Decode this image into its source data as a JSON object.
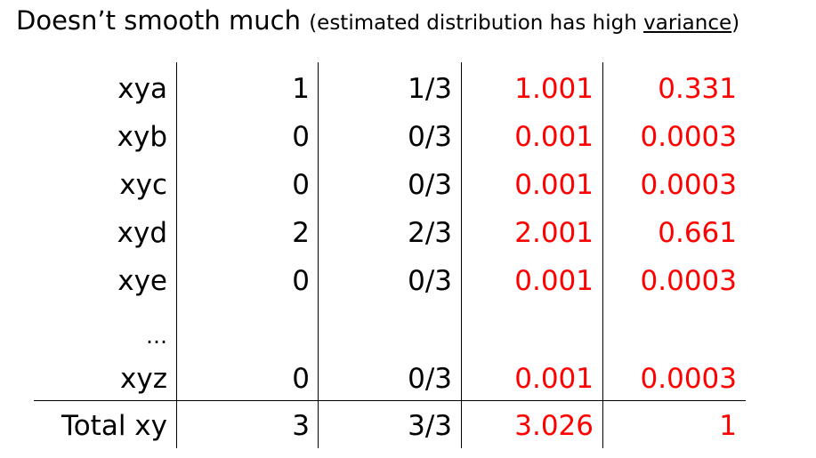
{
  "title": {
    "main": "Doesn’t smooth much ",
    "sub_before": "(estimated distribution has high ",
    "sub_underlined": "variance",
    "sub_after": ")"
  },
  "colors": {
    "highlight": "#ff0000",
    "text": "#000000"
  },
  "table": {
    "rows": [
      {
        "label": "xya",
        "count": "1",
        "fraction": "1/3",
        "smoothed_count": "1.001",
        "smoothed_prob": "0.331"
      },
      {
        "label": "xyb",
        "count": "0",
        "fraction": "0/3",
        "smoothed_count": "0.001",
        "smoothed_prob": "0.0003"
      },
      {
        "label": "xyc",
        "count": "0",
        "fraction": "0/3",
        "smoothed_count": "0.001",
        "smoothed_prob": "0.0003"
      },
      {
        "label": "xyd",
        "count": "2",
        "fraction": "2/3",
        "smoothed_count": "2.001",
        "smoothed_prob": "0.661"
      },
      {
        "label": "xye",
        "count": "0",
        "fraction": "0/3",
        "smoothed_count": "0.001",
        "smoothed_prob": "0.0003"
      },
      {
        "label": "xyz",
        "count": "0",
        "fraction": "0/3",
        "smoothed_count": "0.001",
        "smoothed_prob": "0.0003"
      }
    ],
    "ellipsis": "…",
    "total": {
      "label": "Total xy",
      "count": "3",
      "fraction": "3/3",
      "smoothed_count": "3.026",
      "smoothed_prob": "1"
    }
  }
}
